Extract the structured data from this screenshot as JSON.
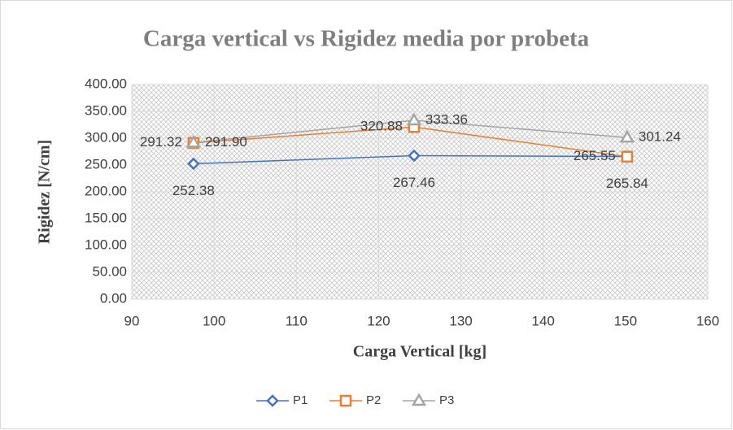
{
  "chart_data": {
    "type": "scatter",
    "title": "Carga vertical vs Rigidez media por probeta",
    "xlabel": "Carga Vertical [kg]",
    "ylabel": "Rigidez [N/cm]",
    "x": [
      97.5,
      124.3,
      150.2
    ],
    "series": [
      {
        "name": "P1",
        "color": "#4472c4",
        "marker": "diamond",
        "values": [
          252.38,
          267.46,
          265.84
        ],
        "value_labels": [
          "252.38",
          "267.46",
          "265.84"
        ]
      },
      {
        "name": "P2",
        "color": "#ed7d31",
        "marker": "square",
        "values": [
          291.32,
          320.88,
          265.55
        ],
        "value_labels": [
          "291.32",
          "320.88",
          "265.55"
        ]
      },
      {
        "name": "P3",
        "color": "#a5a5a5",
        "marker": "triangle",
        "values": [
          291.9,
          333.36,
          301.24
        ],
        "value_labels": [
          "291.90",
          "333.36",
          "301.24"
        ]
      }
    ],
    "xlim": [
      90,
      160
    ],
    "xticks": [
      90,
      100,
      110,
      120,
      130,
      140,
      150,
      160
    ],
    "ylim": [
      0,
      400
    ],
    "yticks": [
      {
        "value": 0,
        "label": "0.00"
      },
      {
        "value": 50,
        "label": "50.00"
      },
      {
        "value": 100,
        "label": "100.00"
      },
      {
        "value": 150,
        "label": "150.00"
      },
      {
        "value": 200,
        "label": "200.00"
      },
      {
        "value": 250,
        "label": "250.00"
      },
      {
        "value": 300,
        "label": "300.00"
      },
      {
        "value": 350,
        "label": "350.00"
      },
      {
        "value": 400,
        "label": "400.00"
      }
    ],
    "grid": true,
    "legend": "bottom"
  }
}
